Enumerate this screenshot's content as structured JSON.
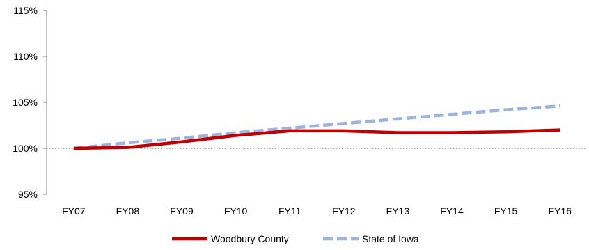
{
  "chart_data": {
    "type": "line",
    "categories": [
      "FY07",
      "FY08",
      "FY09",
      "FY10",
      "FY11",
      "FY12",
      "FY13",
      "FY14",
      "FY15",
      "FY16"
    ],
    "ylim": [
      95,
      115
    ],
    "yticks": [
      95,
      100,
      105,
      110,
      115
    ],
    "ytick_labels": [
      "95%",
      "100%",
      "105%",
      "110%",
      "115%"
    ],
    "reference_line": 100,
    "legend_position": "bottom",
    "series": [
      {
        "name": "Woodbury County",
        "values": [
          100.0,
          100.1,
          100.7,
          101.4,
          101.9,
          101.9,
          101.7,
          101.7,
          101.8,
          102.0
        ],
        "color": "#C00000",
        "style": "solid"
      },
      {
        "name": "State of Iowa",
        "values": [
          100.0,
          100.6,
          101.1,
          101.7,
          102.2,
          102.7,
          103.2,
          103.7,
          104.2,
          104.6
        ],
        "color": "#9DB3E0",
        "style": "dashed"
      }
    ]
  }
}
